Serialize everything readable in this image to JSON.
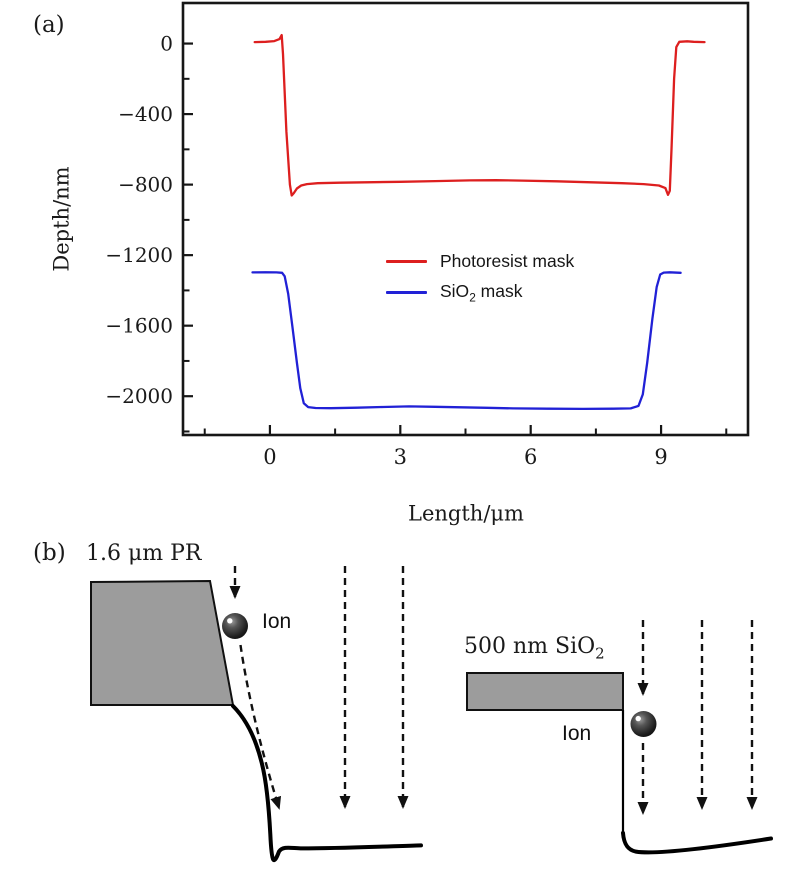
{
  "figure": {
    "background": "#ffffff"
  },
  "panel_a": {
    "label": "(a)"
  },
  "chart_data": {
    "type": "line",
    "title": "",
    "xlabel": "Length/μm",
    "ylabel": "Depth/nm",
    "xlim": [
      -2,
      11
    ],
    "ylim": [
      -2220,
      230
    ],
    "xticks": [
      0,
      3,
      6,
      9
    ],
    "xticks_minor": [
      -1.5,
      1.5,
      4.5,
      7.5,
      10.5
    ],
    "yticks": [
      0,
      -400,
      -800,
      -1200,
      -1600,
      -2000
    ],
    "yticks_minor": [
      -200,
      -600,
      -1000,
      -1400,
      -1800,
      -2200
    ],
    "grid": false,
    "legend_position": "inside center-left",
    "axis_color": "#161616",
    "series": [
      {
        "name": "Photoresist mask",
        "label_parts": {
          "pre": "Photoresist mask",
          "sub": "",
          "post": ""
        },
        "color": "#dd1f1f",
        "points": [
          [
            -0.35,
            8
          ],
          [
            -0.1,
            10
          ],
          [
            0.1,
            14
          ],
          [
            0.22,
            25
          ],
          [
            0.27,
            48
          ],
          [
            0.3,
            -60
          ],
          [
            0.38,
            -500
          ],
          [
            0.46,
            -800
          ],
          [
            0.5,
            -862
          ],
          [
            0.55,
            -848
          ],
          [
            0.62,
            -822
          ],
          [
            0.72,
            -805
          ],
          [
            0.85,
            -797
          ],
          [
            1.1,
            -792
          ],
          [
            1.6,
            -789
          ],
          [
            2.2,
            -787
          ],
          [
            3.0,
            -784
          ],
          [
            3.8,
            -780
          ],
          [
            4.6,
            -776
          ],
          [
            5.2,
            -775
          ],
          [
            5.8,
            -777
          ],
          [
            6.6,
            -781
          ],
          [
            7.4,
            -787
          ],
          [
            8.1,
            -792
          ],
          [
            8.6,
            -797
          ],
          [
            8.95,
            -805
          ],
          [
            9.1,
            -820
          ],
          [
            9.16,
            -858
          ],
          [
            9.2,
            -835
          ],
          [
            9.24,
            -600
          ],
          [
            9.3,
            -200
          ],
          [
            9.35,
            -20
          ],
          [
            9.42,
            10
          ],
          [
            9.6,
            13
          ],
          [
            9.75,
            10
          ],
          [
            10.0,
            8
          ]
        ]
      },
      {
        "name": "SiO2 mask",
        "label_parts": {
          "pre": "SiO",
          "sub": "2",
          "post": " mask"
        },
        "color": "#2121d6",
        "points": [
          [
            -0.4,
            -1298
          ],
          [
            -0.1,
            -1297
          ],
          [
            0.15,
            -1298
          ],
          [
            0.28,
            -1300
          ],
          [
            0.34,
            -1320
          ],
          [
            0.42,
            -1420
          ],
          [
            0.52,
            -1610
          ],
          [
            0.62,
            -1810
          ],
          [
            0.7,
            -1955
          ],
          [
            0.78,
            -2040
          ],
          [
            0.88,
            -2062
          ],
          [
            1.05,
            -2067
          ],
          [
            1.4,
            -2068
          ],
          [
            2.0,
            -2065
          ],
          [
            2.6,
            -2061
          ],
          [
            3.2,
            -2058
          ],
          [
            3.8,
            -2060
          ],
          [
            4.4,
            -2063
          ],
          [
            5.0,
            -2066
          ],
          [
            5.6,
            -2069
          ],
          [
            6.4,
            -2071
          ],
          [
            7.2,
            -2072
          ],
          [
            7.9,
            -2071
          ],
          [
            8.3,
            -2069
          ],
          [
            8.48,
            -2055
          ],
          [
            8.58,
            -1990
          ],
          [
            8.68,
            -1810
          ],
          [
            8.8,
            -1560
          ],
          [
            8.9,
            -1380
          ],
          [
            8.98,
            -1310
          ],
          [
            9.06,
            -1299
          ],
          [
            9.2,
            -1297
          ],
          [
            9.45,
            -1300
          ]
        ]
      }
    ]
  },
  "panel_b": {
    "label": "(b)",
    "pr_mask_label": "1.6 μm PR",
    "sio2_mask_label_parts": {
      "pre": "500 nm SiO",
      "sub": "2"
    },
    "ion_label_left": "Ion",
    "ion_label_right": "Ion",
    "mask_fill_color": "#9c9c9c",
    "line_color": "#000000"
  }
}
